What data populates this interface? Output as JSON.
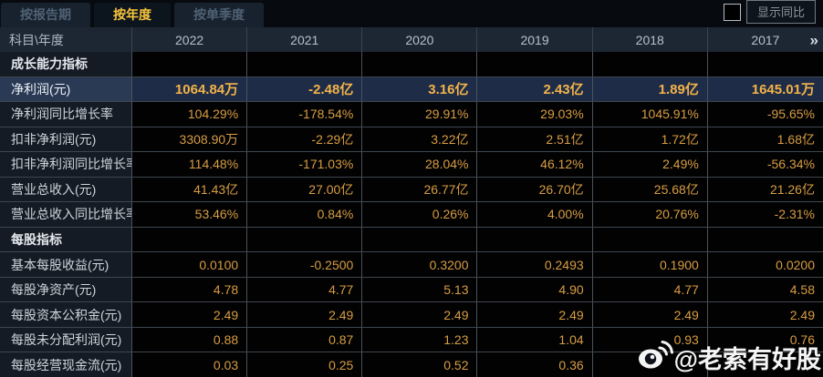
{
  "tabs": {
    "items": [
      {
        "name": "by-report-period",
        "label": "按报告期",
        "active": false
      },
      {
        "name": "by-year",
        "label": "按年度",
        "active": true
      },
      {
        "name": "by-quarter",
        "label": "按单季度",
        "active": false
      }
    ]
  },
  "controls": {
    "show_yoy_label": "显示同比",
    "checkbox_checked": false
  },
  "table": {
    "corner_label": "科目\\年度",
    "years": [
      "2022",
      "2021",
      "2020",
      "2019",
      "2018",
      "2017"
    ],
    "more_icon": "»",
    "rows": [
      {
        "type": "section",
        "label": "成长能力指标",
        "values": [
          "",
          "",
          "",
          "",
          "",
          ""
        ]
      },
      {
        "type": "highlight",
        "label": "净利润(元)",
        "values": [
          "1064.84万",
          "-2.48亿",
          "3.16亿",
          "2.43亿",
          "1.89亿",
          "1645.01万"
        ]
      },
      {
        "type": "data",
        "label": "净利润同比增长率",
        "values": [
          "104.29%",
          "-178.54%",
          "29.91%",
          "29.03%",
          "1045.91%",
          "-95.65%"
        ]
      },
      {
        "type": "data",
        "label": "扣非净利润(元)",
        "values": [
          "3308.90万",
          "-2.29亿",
          "3.22亿",
          "2.51亿",
          "1.72亿",
          "1.68亿"
        ]
      },
      {
        "type": "data",
        "label": "扣非净利润同比增长率",
        "values": [
          "114.48%",
          "-171.03%",
          "28.04%",
          "46.12%",
          "2.49%",
          "-56.34%"
        ]
      },
      {
        "type": "data",
        "label": "营业总收入(元)",
        "values": [
          "41.43亿",
          "27.00亿",
          "26.77亿",
          "26.70亿",
          "25.68亿",
          "21.26亿"
        ]
      },
      {
        "type": "data",
        "label": "营业总收入同比增长率",
        "values": [
          "53.46%",
          "0.84%",
          "0.26%",
          "4.00%",
          "20.76%",
          "-2.31%"
        ]
      },
      {
        "type": "section",
        "label": "每股指标",
        "values": [
          "",
          "",
          "",
          "",
          "",
          ""
        ]
      },
      {
        "type": "data",
        "label": "基本每股收益(元)",
        "values": [
          "0.0100",
          "-0.2500",
          "0.3200",
          "0.2493",
          "0.1900",
          "0.0200"
        ]
      },
      {
        "type": "data",
        "label": "每股净资产(元)",
        "values": [
          "4.78",
          "4.77",
          "5.13",
          "4.90",
          "4.77",
          "4.58"
        ]
      },
      {
        "type": "data",
        "label": "每股资本公积金(元)",
        "values": [
          "2.49",
          "2.49",
          "2.49",
          "2.49",
          "2.49",
          "2.49"
        ]
      },
      {
        "type": "data",
        "label": "每股未分配利润(元)",
        "values": [
          "0.88",
          "0.87",
          "1.23",
          "1.04",
          "0.93",
          "0.76"
        ]
      },
      {
        "type": "data",
        "label": "每股经营现金流(元)",
        "values": [
          "0.03",
          "0.25",
          "0.52",
          "0.36",
          "",
          ""
        ]
      }
    ]
  },
  "watermark": {
    "icon": "weibo-icon",
    "text": "@老索有好股"
  },
  "colors": {
    "value_gold": "#d89d43",
    "highlight_value_gold": "#f2b34a",
    "highlight_row_bg": "#1e2c47",
    "tab_active_text": "#f7c53d",
    "header_bg": "#1d2733"
  }
}
